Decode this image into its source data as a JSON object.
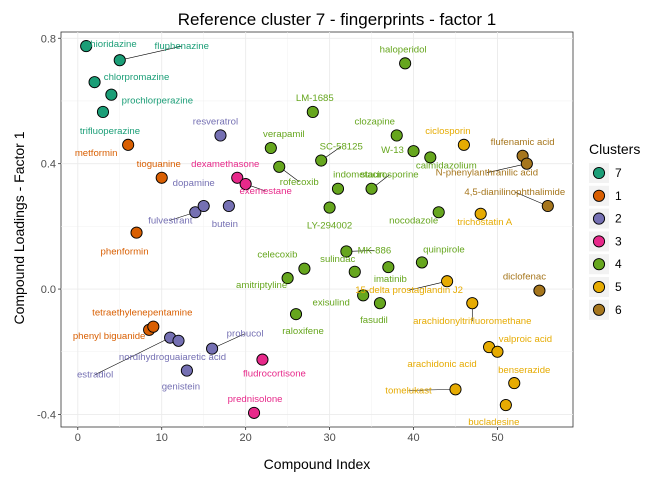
{
  "chart_data": {
    "type": "scatter",
    "title": "Reference cluster 7 - fingerprints - factor 1",
    "xlabel": "Compound Index",
    "ylabel": "Compound Loadings - Factor 1",
    "xlim": [
      -2,
      59
    ],
    "ylim": [
      -0.44,
      0.82
    ],
    "xticks": [
      0,
      10,
      20,
      30,
      40,
      50
    ],
    "yticks": [
      -0.4,
      0.0,
      0.4,
      0.8
    ],
    "ytick_labels": [
      "-0.4",
      "0.0",
      "0.4",
      "0.8"
    ],
    "grid": true,
    "legend": {
      "title": "Clusters",
      "position": "right",
      "entries": [
        {
          "name": "7",
          "color": "#1b9e77"
        },
        {
          "name": "1",
          "color": "#d95f02"
        },
        {
          "name": "2",
          "color": "#7570b3"
        },
        {
          "name": "3",
          "color": "#e7298a"
        },
        {
          "name": "4",
          "color": "#66a61e"
        },
        {
          "name": "5",
          "color": "#e6ab02"
        },
        {
          "name": "6",
          "color": "#a6761d"
        }
      ]
    },
    "points": [
      {
        "x": 1,
        "y": 0.775,
        "label": "thioridazine",
        "cluster": "7"
      },
      {
        "x": 2,
        "y": 0.66,
        "label": "chlorpromazine",
        "cluster": "7"
      },
      {
        "x": 3,
        "y": 0.565,
        "label": "trifluoperazine",
        "cluster": "7"
      },
      {
        "x": 4,
        "y": 0.62,
        "label": "prochlorperazine",
        "cluster": "7"
      },
      {
        "x": 5,
        "y": 0.73,
        "label": "fluphenazine",
        "cluster": "7"
      },
      {
        "x": 6,
        "y": 0.46,
        "label": "metformin",
        "cluster": "1"
      },
      {
        "x": 7,
        "y": 0.18,
        "label": "phenformin",
        "cluster": "1"
      },
      {
        "x": 8.5,
        "y": -0.13,
        "label": "phenyl biguanide",
        "cluster": "1"
      },
      {
        "x": 9,
        "y": -0.12,
        "label": "tetraethylenepentamine",
        "cluster": "1"
      },
      {
        "x": 10,
        "y": 0.355,
        "label": "tioguanine",
        "cluster": "1"
      },
      {
        "x": 11,
        "y": -0.155,
        "label": "estradiol",
        "cluster": "2"
      },
      {
        "x": 12,
        "y": -0.165,
        "label": "nordihydroguaiaretic acid",
        "cluster": "2"
      },
      {
        "x": 13,
        "y": -0.26,
        "label": "genistein",
        "cluster": "2"
      },
      {
        "x": 14,
        "y": 0.245,
        "label": "fulvestrant",
        "cluster": "2"
      },
      {
        "x": 15,
        "y": 0.265,
        "label": "dopamine",
        "cluster": "2"
      },
      {
        "x": 16,
        "y": -0.19,
        "label": "probucol",
        "cluster": "2"
      },
      {
        "x": 17,
        "y": 0.49,
        "label": "resveratrol",
        "cluster": "2"
      },
      {
        "x": 18,
        "y": 0.265,
        "label": "butein",
        "cluster": "2"
      },
      {
        "x": 19,
        "y": 0.355,
        "label": "dexamethasone",
        "cluster": "3"
      },
      {
        "x": 20,
        "y": 0.335,
        "label": "exemestane",
        "cluster": "3"
      },
      {
        "x": 21,
        "y": -0.395,
        "label": "prednisolone",
        "cluster": "3"
      },
      {
        "x": 22,
        "y": -0.225,
        "label": "fludrocortisone",
        "cluster": "3"
      },
      {
        "x": 23,
        "y": 0.45,
        "label": "verapamil",
        "cluster": "4"
      },
      {
        "x": 24,
        "y": 0.39,
        "label": "rofecoxib",
        "cluster": "4"
      },
      {
        "x": 25,
        "y": 0.035,
        "label": "amitriptyline",
        "cluster": "4"
      },
      {
        "x": 26,
        "y": -0.08,
        "label": "raloxifene",
        "cluster": "4"
      },
      {
        "x": 27,
        "y": 0.065,
        "label": "celecoxib",
        "cluster": "4"
      },
      {
        "x": 28,
        "y": 0.565,
        "label": "LM-1685",
        "cluster": "4"
      },
      {
        "x": 29,
        "y": 0.41,
        "label": "SC-58125",
        "cluster": "4"
      },
      {
        "x": 30,
        "y": 0.26,
        "label": "LY-294002",
        "cluster": "4"
      },
      {
        "x": 31,
        "y": 0.32,
        "label": "indometacin",
        "cluster": "4"
      },
      {
        "x": 32,
        "y": 0.12,
        "label": "MK-886",
        "cluster": "4"
      },
      {
        "x": 33,
        "y": 0.055,
        "label": "sulindac",
        "cluster": "4"
      },
      {
        "x": 34,
        "y": -0.02,
        "label": "exisulind",
        "cluster": "4"
      },
      {
        "x": 35,
        "y": 0.32,
        "label": "staurosporine",
        "cluster": "4"
      },
      {
        "x": 36,
        "y": -0.045,
        "label": "fasudil",
        "cluster": "4"
      },
      {
        "x": 37,
        "y": 0.07,
        "label": "imatinib",
        "cluster": "4"
      },
      {
        "x": 38,
        "y": 0.49,
        "label": "clozapine",
        "cluster": "4"
      },
      {
        "x": 39,
        "y": 0.72,
        "label": "haloperidol",
        "cluster": "4"
      },
      {
        "x": 40,
        "y": 0.44,
        "label": "W-13",
        "cluster": "4"
      },
      {
        "x": 41,
        "y": 0.085,
        "label": "quinpirole",
        "cluster": "4"
      },
      {
        "x": 42,
        "y": 0.42,
        "label": "calmidazolium",
        "cluster": "4"
      },
      {
        "x": 43,
        "y": 0.245,
        "label": "nocodazole",
        "cluster": "4"
      },
      {
        "x": 44,
        "y": 0.025,
        "label": "15-delta prostaglandin J2",
        "cluster": "5"
      },
      {
        "x": 45,
        "y": -0.32,
        "label": "tomelukast",
        "cluster": "5"
      },
      {
        "x": 46,
        "y": 0.46,
        "label": "ciclosporin",
        "cluster": "5"
      },
      {
        "x": 47,
        "y": -0.045,
        "label": "arachidonyltrifluoromethane",
        "cluster": "5"
      },
      {
        "x": 48,
        "y": 0.24,
        "label": "trichostatin A",
        "cluster": "5"
      },
      {
        "x": 49,
        "y": -0.185,
        "label": "arachidonic acid",
        "cluster": "5"
      },
      {
        "x": 50,
        "y": -0.2,
        "label": "valproic acid",
        "cluster": "5"
      },
      {
        "x": 51,
        "y": -0.37,
        "label": "bucladesine",
        "cluster": "5"
      },
      {
        "x": 52,
        "y": -0.3,
        "label": "benserazide",
        "cluster": "5"
      },
      {
        "x": 53,
        "y": 0.425,
        "label": "flufenamic acid",
        "cluster": "6"
      },
      {
        "x": 53.5,
        "y": 0.4,
        "label": "N-phenylanthranilic acid",
        "cluster": "6"
      },
      {
        "x": 55,
        "y": -0.005,
        "label": "diclofenac",
        "cluster": "6"
      },
      {
        "x": 56,
        "y": 0.265,
        "label": "4,5-dianilinophthalimide",
        "cluster": "6"
      }
    ]
  }
}
